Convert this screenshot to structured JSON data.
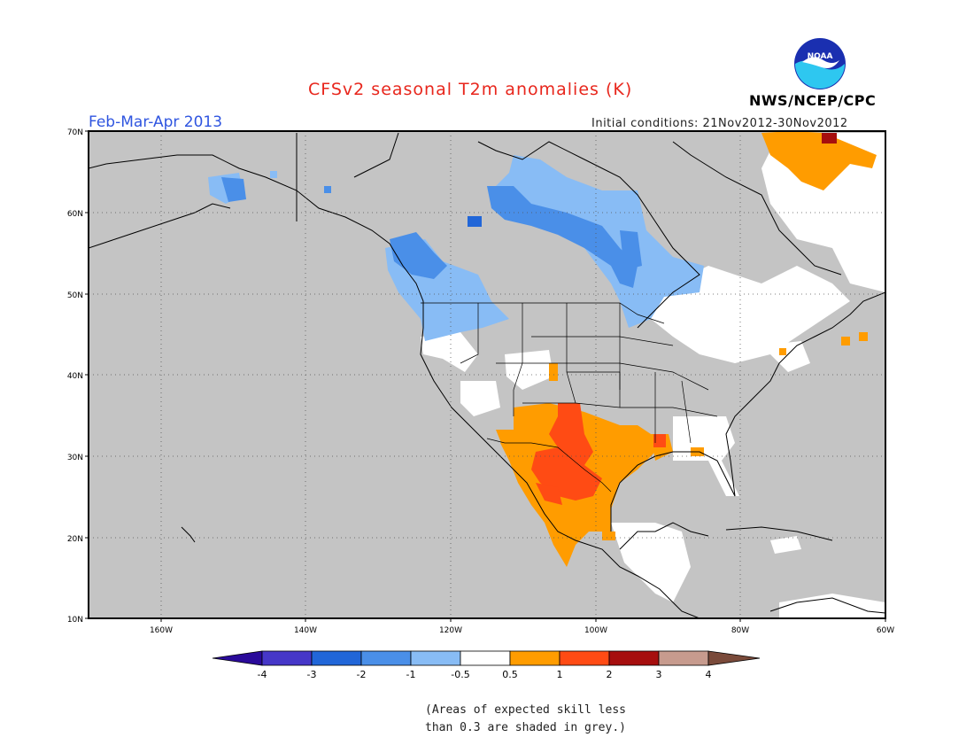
{
  "header": {
    "title": "CFSv2 seasonal T2m anomalies (K)",
    "season": "Feb-Mar-Apr 2013",
    "initial_conditions": "Initial conditions: 21Nov2012-30Nov2012",
    "agency": "NWS/NCEP/CPC",
    "logo_text": "NOAA"
  },
  "map": {
    "lat_labels": [
      "70N",
      "60N",
      "50N",
      "40N",
      "30N",
      "20N",
      "10N"
    ],
    "lon_labels": [
      "160W",
      "140W",
      "120W",
      "100W",
      "80W",
      "60W"
    ],
    "lat_range": [
      10,
      70
    ],
    "lon_range": [
      -170,
      -60
    ],
    "grid": "dotted every 10 degrees",
    "background_color": "#c4c4c4",
    "coastline_color": "#000000"
  },
  "colorbar": {
    "labels": [
      "-4",
      "-3",
      "-2",
      "-1",
      "-0.5",
      "0.5",
      "1",
      "2",
      "3",
      "4"
    ],
    "colors": [
      "#2a0a9a",
      "#4637c8",
      "#2166d8",
      "#4a8fe8",
      "#88bcf5",
      "#ffffff",
      "#ff9c00",
      "#ff4b14",
      "#a60e0e",
      "#c79b8e",
      "#7a4a3a"
    ]
  },
  "note": {
    "line1": "(Areas of expected skill less",
    "line2": "than 0.3 are shaded in grey.)"
  }
}
